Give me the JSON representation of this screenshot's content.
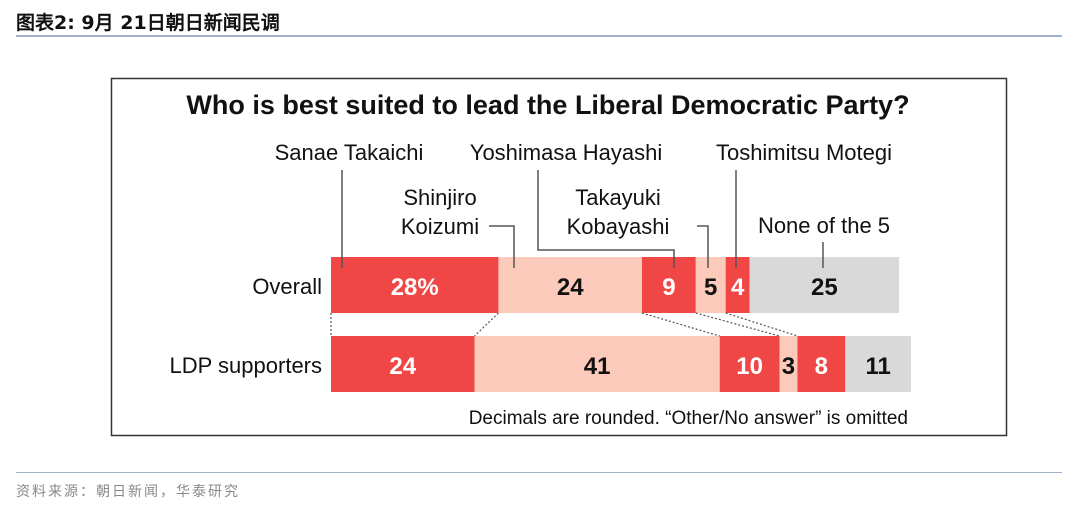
{
  "figure_title": "图表2:  9月 21日朝日新闻民调",
  "source": "资料来源：朝日新闻，华泰研究",
  "chart_data": {
    "type": "bar",
    "orientation": "horizontal-stacked",
    "title": "Who is best suited to lead the Liberal Democratic Party?",
    "note": "Decimals are rounded. “Other/No answer” is omitted",
    "categories": [
      "Overall",
      "LDP supporters"
    ],
    "series": [
      {
        "name": "Sanae Takaichi",
        "label_lines": [
          "Sanae Takaichi"
        ],
        "color": "#f04646",
        "text_color": "#ffffff",
        "values": [
          28,
          24
        ]
      },
      {
        "name": "Shinjiro Koizumi",
        "label_lines": [
          "Shinjiro",
          "Koizumi"
        ],
        "color": "#fccabb",
        "text_color": "#111111",
        "values": [
          24,
          41
        ]
      },
      {
        "name": "Yoshimasa Hayashi",
        "label_lines": [
          "Yoshimasa Hayashi"
        ],
        "color": "#f04646",
        "text_color": "#ffffff",
        "values": [
          9,
          10
        ]
      },
      {
        "name": "Takayuki Kobayashi",
        "label_lines": [
          "Takayuki",
          "Kobayashi"
        ],
        "color": "#fccabb",
        "text_color": "#111111",
        "values": [
          5,
          3
        ]
      },
      {
        "name": "Toshimitsu Motegi",
        "label_lines": [
          "Toshimitsu Motegi"
        ],
        "color": "#f04646",
        "text_color": "#ffffff",
        "values": [
          4,
          8
        ]
      },
      {
        "name": "None of the 5",
        "label_lines": [
          "None of the 5"
        ],
        "color": "#d9d9d9",
        "text_color": "#111111",
        "values": [
          25,
          11
        ]
      }
    ],
    "value_labels": [
      [
        "28%",
        "24",
        "9",
        "5",
        "4",
        "25"
      ],
      [
        "24",
        "41",
        "10",
        "3",
        "8",
        "11"
      ]
    ],
    "unit": "%"
  }
}
